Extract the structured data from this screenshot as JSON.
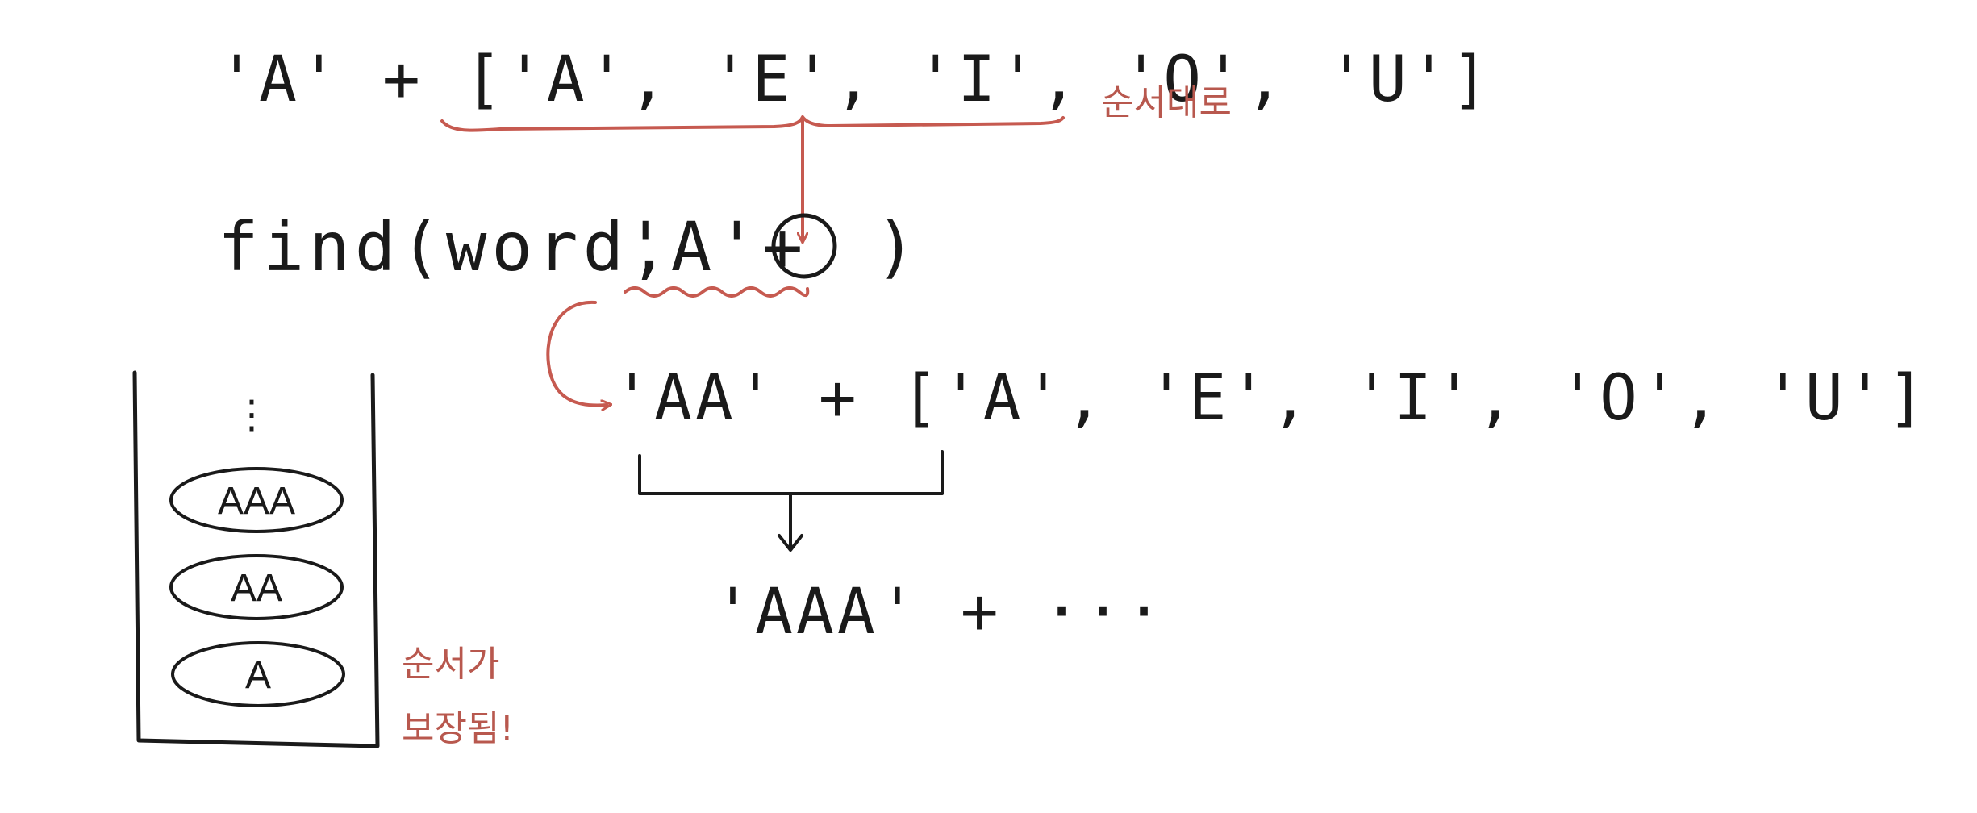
{
  "line1": {
    "code": "'A' + ['A', 'E', 'I', 'O', 'U']",
    "note": "순서대로"
  },
  "line2": {
    "prefix": "find(word, ",
    "term": "'A'+",
    "suffix": ")"
  },
  "line3": {
    "code": "'AA' + ['A', 'E', 'I', 'O', 'U']"
  },
  "line4": {
    "code": "'AAA' + ···"
  },
  "stack": {
    "dots": "⋮",
    "items": [
      "AAA",
      "AA",
      "A"
    ],
    "note_line1": "순서가",
    "note_line2": "보장됨!"
  },
  "colors": {
    "ink": "#1a1a1a",
    "annotation": "#c65a50"
  }
}
